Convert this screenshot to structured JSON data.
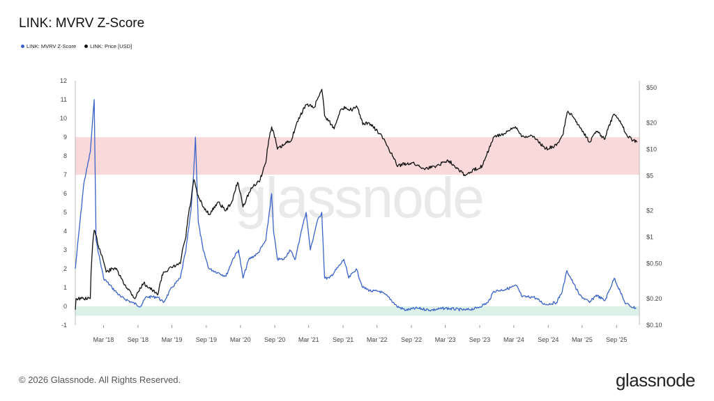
{
  "title": "LINK: MVRV Z-Score",
  "legend": [
    {
      "label": "LINK: MVRV Z-Score",
      "color": "#3a63c9"
    },
    {
      "label": "LINK: Price [USD]",
      "color": "#111111"
    }
  ],
  "watermark": "glassnode",
  "footer": {
    "copyright": "© 2026 Glassnode. All Rights Reserved.",
    "brand": "glassnode"
  },
  "chart_data": {
    "type": "line",
    "title": "LINK: MVRV Z-Score",
    "x_tick_labels": [
      "Mar '18",
      "Sep '18",
      "Mar '19",
      "Sep '19",
      "Mar '20",
      "Sep '20",
      "Mar '21",
      "Sep '21",
      "Mar '22",
      "Sep '22",
      "Mar '23",
      "Sep '23",
      "Mar '24",
      "Sep '24",
      "Mar '25",
      "Sep '25"
    ],
    "xlim": [
      "2017-10-01",
      "2026-01-01"
    ],
    "left_axis": {
      "ylim": [
        -1,
        12
      ],
      "ticks": [
        -1,
        0,
        1,
        2,
        3,
        4,
        5,
        6,
        7,
        8,
        9,
        10,
        11,
        12
      ]
    },
    "right_axis": {
      "scale": "log",
      "ylim": [
        0.1,
        60
      ],
      "ticks": [
        0.1,
        0.2,
        0.5,
        1,
        2,
        5,
        10,
        20,
        50
      ],
      "tick_labels": [
        "$0.10",
        "$0.20",
        "$0.50",
        "$1",
        "$2",
        "$5",
        "$10",
        "$20",
        "$50"
      ]
    },
    "bands": [
      {
        "axis": "left",
        "from": 7,
        "to": 9,
        "color": "#f9d9d9"
      },
      {
        "axis": "left",
        "from": -0.5,
        "to": 0,
        "color": "#dcf1e8"
      }
    ],
    "series": [
      {
        "name": "LINK: MVRV Z-Score",
        "axis": "left",
        "color": "#3a63c9",
        "points": [
          [
            "2017-10-01",
            2.0
          ],
          [
            "2017-11-15",
            6.5
          ],
          [
            "2017-12-20",
            8.2
          ],
          [
            "2018-01-10",
            11.0
          ],
          [
            "2018-01-20",
            3.5
          ],
          [
            "2018-03-01",
            1.5
          ],
          [
            "2018-04-15",
            1.0
          ],
          [
            "2018-06-01",
            0.5
          ],
          [
            "2018-08-01",
            0.2
          ],
          [
            "2018-09-15",
            0.0
          ],
          [
            "2018-10-15",
            0.5
          ],
          [
            "2018-12-15",
            0.5
          ],
          [
            "2019-01-15",
            0.2
          ],
          [
            "2019-03-01",
            1.0
          ],
          [
            "2019-04-15",
            1.5
          ],
          [
            "2019-05-15",
            3.0
          ],
          [
            "2019-06-10",
            5.0
          ],
          [
            "2019-06-25",
            7.0
          ],
          [
            "2019-07-05",
            9.0
          ],
          [
            "2019-07-20",
            4.5
          ],
          [
            "2019-08-15",
            3.0
          ],
          [
            "2019-09-15",
            2.0
          ],
          [
            "2019-11-01",
            1.8
          ],
          [
            "2019-12-15",
            1.6
          ],
          [
            "2020-01-20",
            2.5
          ],
          [
            "2020-02-20",
            3.0
          ],
          [
            "2020-03-15",
            1.5
          ],
          [
            "2020-04-15",
            2.5
          ],
          [
            "2020-06-01",
            2.8
          ],
          [
            "2020-07-15",
            3.5
          ],
          [
            "2020-08-15",
            6.0
          ],
          [
            "2020-08-25",
            4.0
          ],
          [
            "2020-09-15",
            2.5
          ],
          [
            "2020-10-20",
            2.5
          ],
          [
            "2020-11-20",
            3.0
          ],
          [
            "2020-12-20",
            2.5
          ],
          [
            "2021-01-20",
            4.0
          ],
          [
            "2021-02-15",
            5.0
          ],
          [
            "2021-03-10",
            3.0
          ],
          [
            "2021-04-15",
            4.5
          ],
          [
            "2021-05-10",
            5.0
          ],
          [
            "2021-05-25",
            1.5
          ],
          [
            "2021-06-20",
            1.5
          ],
          [
            "2021-08-15",
            2.2
          ],
          [
            "2021-09-05",
            2.5
          ],
          [
            "2021-10-01",
            1.5
          ],
          [
            "2021-11-10",
            2.0
          ],
          [
            "2021-12-15",
            1.0
          ],
          [
            "2022-02-01",
            0.8
          ],
          [
            "2022-03-15",
            0.8
          ],
          [
            "2022-05-01",
            0.5
          ],
          [
            "2022-06-15",
            0.0
          ],
          [
            "2022-08-01",
            -0.2
          ],
          [
            "2022-10-01",
            -0.1
          ],
          [
            "2022-12-15",
            -0.2
          ],
          [
            "2023-03-01",
            -0.1
          ],
          [
            "2023-06-15",
            -0.2
          ],
          [
            "2023-08-15",
            -0.1
          ],
          [
            "2023-10-15",
            0.2
          ],
          [
            "2023-11-15",
            0.8
          ],
          [
            "2024-01-15",
            0.9
          ],
          [
            "2024-03-15",
            1.1
          ],
          [
            "2024-04-15",
            0.5
          ],
          [
            "2024-06-15",
            0.5
          ],
          [
            "2024-08-15",
            0.1
          ],
          [
            "2024-10-15",
            0.2
          ],
          [
            "2024-11-15",
            0.8
          ],
          [
            "2024-12-10",
            1.9
          ],
          [
            "2025-01-15",
            1.2
          ],
          [
            "2025-02-15",
            0.6
          ],
          [
            "2025-04-10",
            0.2
          ],
          [
            "2025-05-15",
            0.6
          ],
          [
            "2025-07-01",
            0.3
          ],
          [
            "2025-08-20",
            1.5
          ],
          [
            "2025-09-20",
            0.8
          ],
          [
            "2025-10-15",
            0.2
          ],
          [
            "2025-11-15",
            0.0
          ],
          [
            "2025-12-15",
            -0.1
          ]
        ]
      },
      {
        "name": "LINK: Price [USD]",
        "axis": "right",
        "color": "#111111",
        "points": [
          [
            "2017-10-01",
            0.15
          ],
          [
            "2017-10-05",
            0.2
          ],
          [
            "2017-11-01",
            0.2
          ],
          [
            "2017-12-20",
            0.2
          ],
          [
            "2018-01-10",
            1.2
          ],
          [
            "2018-02-01",
            0.8
          ],
          [
            "2018-03-15",
            0.4
          ],
          [
            "2018-05-01",
            0.45
          ],
          [
            "2018-06-15",
            0.3
          ],
          [
            "2018-08-15",
            0.2
          ],
          [
            "2018-10-01",
            0.3
          ],
          [
            "2018-11-15",
            0.25
          ],
          [
            "2018-12-15",
            0.22
          ],
          [
            "2019-01-15",
            0.4
          ],
          [
            "2019-03-01",
            0.45
          ],
          [
            "2019-04-15",
            0.5
          ],
          [
            "2019-05-15",
            1.0
          ],
          [
            "2019-06-10",
            2.5
          ],
          [
            "2019-06-28",
            4.5
          ],
          [
            "2019-07-15",
            3.0
          ],
          [
            "2019-08-15",
            2.2
          ],
          [
            "2019-09-20",
            1.8
          ],
          [
            "2019-11-01",
            2.5
          ],
          [
            "2019-12-15",
            2.0
          ],
          [
            "2020-01-20",
            2.6
          ],
          [
            "2020-02-15",
            4.2
          ],
          [
            "2020-03-15",
            2.2
          ],
          [
            "2020-05-01",
            3.6
          ],
          [
            "2020-06-15",
            4.5
          ],
          [
            "2020-07-15",
            7.0
          ],
          [
            "2020-08-15",
            18.0
          ],
          [
            "2020-09-15",
            10.0
          ],
          [
            "2020-10-15",
            11.0
          ],
          [
            "2020-12-01",
            13.0
          ],
          [
            "2021-01-15",
            24.0
          ],
          [
            "2021-02-15",
            32.0
          ],
          [
            "2021-04-01",
            30.0
          ],
          [
            "2021-05-10",
            48.0
          ],
          [
            "2021-05-25",
            24.0
          ],
          [
            "2021-07-15",
            17.0
          ],
          [
            "2021-08-15",
            27.0
          ],
          [
            "2021-09-15",
            30.0
          ],
          [
            "2021-10-15",
            28.0
          ],
          [
            "2021-11-15",
            30.0
          ],
          [
            "2021-12-15",
            19.0
          ],
          [
            "2022-01-15",
            20.0
          ],
          [
            "2022-03-15",
            15.0
          ],
          [
            "2022-05-15",
            9.0
          ],
          [
            "2022-06-15",
            6.5
          ],
          [
            "2022-09-01",
            7.0
          ],
          [
            "2022-11-15",
            6.0
          ],
          [
            "2023-01-15",
            6.5
          ],
          [
            "2023-03-15",
            7.5
          ],
          [
            "2023-06-15",
            5.0
          ],
          [
            "2023-09-15",
            6.5
          ],
          [
            "2023-10-20",
            10.0
          ],
          [
            "2023-11-20",
            14.0
          ],
          [
            "2024-01-15",
            15.0
          ],
          [
            "2024-03-10",
            18.0
          ],
          [
            "2024-04-15",
            14.0
          ],
          [
            "2024-06-15",
            14.0
          ],
          [
            "2024-08-15",
            10.0
          ],
          [
            "2024-10-15",
            11.0
          ],
          [
            "2024-11-20",
            15.0
          ],
          [
            "2024-12-15",
            27.0
          ],
          [
            "2025-01-20",
            22.0
          ],
          [
            "2025-02-15",
            18.0
          ],
          [
            "2025-04-10",
            12.0
          ],
          [
            "2025-05-15",
            16.0
          ],
          [
            "2025-07-01",
            13.0
          ],
          [
            "2025-08-20",
            25.0
          ],
          [
            "2025-09-20",
            21.0
          ],
          [
            "2025-10-20",
            15.0
          ],
          [
            "2025-11-20",
            13.0
          ],
          [
            "2025-12-20",
            12.0
          ]
        ]
      }
    ]
  }
}
